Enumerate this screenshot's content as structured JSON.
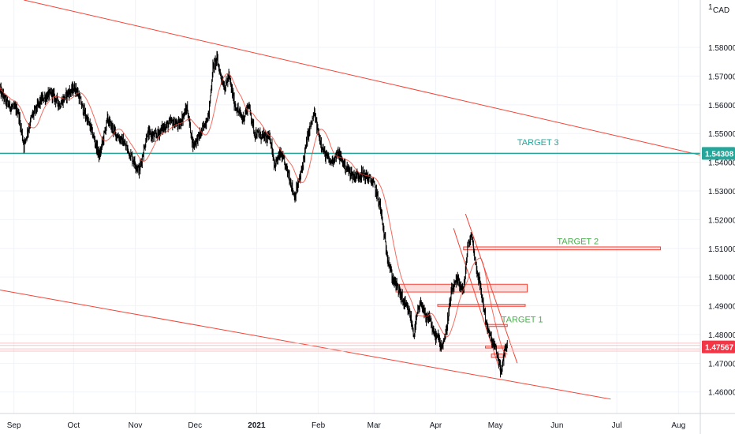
{
  "chart_data": {
    "type": "candlestick",
    "instrument_currency": "CAD",
    "currency_label": "CAD",
    "y_axis": {
      "range": [
        1.4525,
        1.5965
      ],
      "ticks": [
        "1.58000",
        "1.57000",
        "1.56000",
        "1.55000",
        "1.54000",
        "1.53000",
        "1.52000",
        "1.51000",
        "1.50000",
        "1.49000",
        "1.48000",
        "1.47000",
        "1.46000"
      ],
      "top_partial_label": "1."
    },
    "x_axis": {
      "range_days": [
        -7,
        345
      ],
      "labels": [
        "Sep",
        "Oct",
        "Nov",
        "Dec",
        "2021",
        "Feb",
        "Mar",
        "Apr",
        "May",
        "Jun",
        "Jul",
        "Aug"
      ],
      "label_days": [
        0,
        30,
        61,
        91,
        122,
        153,
        181,
        212,
        242,
        273,
        303,
        334
      ]
    },
    "price_badges": [
      {
        "text": "1.54308",
        "value": 1.54308,
        "color": "#26a69a"
      },
      {
        "text": "1.47567",
        "value": 1.47567,
        "color": "#f23645"
      }
    ],
    "horizontal_lines": [
      {
        "value": 1.54308,
        "color": "#26a69a",
        "label": "TARGET 3"
      }
    ],
    "trend_lines": [
      {
        "from": {
          "day": 5,
          "price": 1.5965
        },
        "to": {
          "day": 345,
          "price": 1.5425
        },
        "color": "#f44336"
      },
      {
        "from": {
          "day": -7,
          "price": 1.4955
        },
        "to": {
          "day": 300,
          "price": 1.4575
        },
        "color": "#f44336"
      },
      {
        "from": {
          "day": 227,
          "price": 1.522
        },
        "to": {
          "day": 253,
          "price": 1.47
        },
        "color": "#f44336"
      },
      {
        "from": {
          "day": 221,
          "price": 1.517
        },
        "to": {
          "day": 245,
          "price": 1.466
        },
        "color": "#f44336"
      }
    ],
    "zones": [
      {
        "from_day": 226,
        "to_day": 325,
        "top": 1.5105,
        "bottom": 1.5095,
        "label": "TARGET 2"
      },
      {
        "from_day": 192,
        "to_day": 258,
        "top": 1.4975,
        "bottom": 1.4948
      },
      {
        "from_day": 213,
        "to_day": 257,
        "top": 1.4905,
        "bottom": 1.4898
      },
      {
        "from_day": 237,
        "to_day": 248,
        "top": 1.4835,
        "bottom": 1.4828,
        "label": "TARGET 1"
      },
      {
        "from_day": 237,
        "to_day": 248,
        "top": 1.476,
        "bottom": 1.4753
      },
      {
        "from_day": 240,
        "to_day": 247,
        "top": 1.4732,
        "bottom": 1.472
      }
    ],
    "support_band": {
      "values": [
        1.477,
        1.4762,
        1.475,
        1.4742
      ],
      "color": "#f7c4c4"
    },
    "annotations": [
      {
        "text": "TARGET 3",
        "day": 253,
        "price": 1.546,
        "color": "#26a69a"
      },
      {
        "text": "TARGET 2",
        "day": 273,
        "price": 1.5114,
        "color": "#4caf50"
      },
      {
        "text": "TARGET 1",
        "day": 245,
        "price": 1.4843,
        "color": "#4caf50"
      }
    ],
    "price_path": [
      [
        -7,
        1.565
      ],
      [
        -3,
        1.56
      ],
      [
        2,
        1.558
      ],
      [
        5,
        1.546
      ],
      [
        9,
        1.556
      ],
      [
        14,
        1.562
      ],
      [
        19,
        1.564
      ],
      [
        23,
        1.56
      ],
      [
        27,
        1.564
      ],
      [
        31,
        1.566
      ],
      [
        35,
        1.558
      ],
      [
        39,
        1.551
      ],
      [
        43,
        1.542
      ],
      [
        47,
        1.555
      ],
      [
        51,
        1.55
      ],
      [
        55,
        1.547
      ],
      [
        59,
        1.542
      ],
      [
        63,
        1.537
      ],
      [
        67,
        1.55
      ],
      [
        71,
        1.549
      ],
      [
        75,
        1.552
      ],
      [
        79,
        1.554
      ],
      [
        83,
        1.553
      ],
      [
        87,
        1.559
      ],
      [
        90,
        1.546
      ],
      [
        94,
        1.55
      ],
      [
        98,
        1.557
      ],
      [
        100,
        1.573
      ],
      [
        102,
        1.576
      ],
      [
        104,
        1.57
      ],
      [
        106,
        1.566
      ],
      [
        108,
        1.57
      ],
      [
        111,
        1.56
      ],
      [
        115,
        1.555
      ],
      [
        118,
        1.56
      ],
      [
        121,
        1.55
      ],
      [
        125,
        1.549
      ],
      [
        129,
        1.548
      ],
      [
        131,
        1.539
      ],
      [
        134,
        1.543
      ],
      [
        138,
        1.536
      ],
      [
        141,
        1.528
      ],
      [
        144,
        1.535
      ],
      [
        148,
        1.55
      ],
      [
        151,
        1.557
      ],
      [
        153,
        1.55
      ],
      [
        156,
        1.543
      ],
      [
        159,
        1.54
      ],
      [
        163,
        1.543
      ],
      [
        167,
        1.538
      ],
      [
        171,
        1.535
      ],
      [
        175,
        1.536
      ],
      [
        179,
        1.534
      ],
      [
        181,
        1.532
      ],
      [
        184,
        1.525
      ],
      [
        187,
        1.51
      ],
      [
        190,
        1.5
      ],
      [
        193,
        1.496
      ],
      [
        196,
        1.491
      ],
      [
        199,
        1.487
      ],
      [
        201,
        1.48
      ],
      [
        203,
        1.488
      ],
      [
        205,
        1.491
      ],
      [
        207,
        1.485
      ],
      [
        209,
        1.486
      ],
      [
        211,
        1.48
      ],
      [
        213,
        1.479
      ],
      [
        215,
        1.476
      ],
      [
        217,
        1.48
      ],
      [
        220,
        1.495
      ],
      [
        223,
        1.499
      ],
      [
        226,
        1.495
      ],
      [
        228,
        1.51
      ],
      [
        230,
        1.515
      ],
      [
        232,
        1.505
      ],
      [
        234,
        1.498
      ],
      [
        236,
        1.49
      ],
      [
        238,
        1.482
      ],
      [
        240,
        1.478
      ],
      [
        242,
        1.475
      ],
      [
        244,
        1.47
      ],
      [
        245,
        1.466
      ],
      [
        246,
        1.472
      ],
      [
        247,
        1.476
      ],
      [
        248,
        1.4757
      ]
    ]
  }
}
